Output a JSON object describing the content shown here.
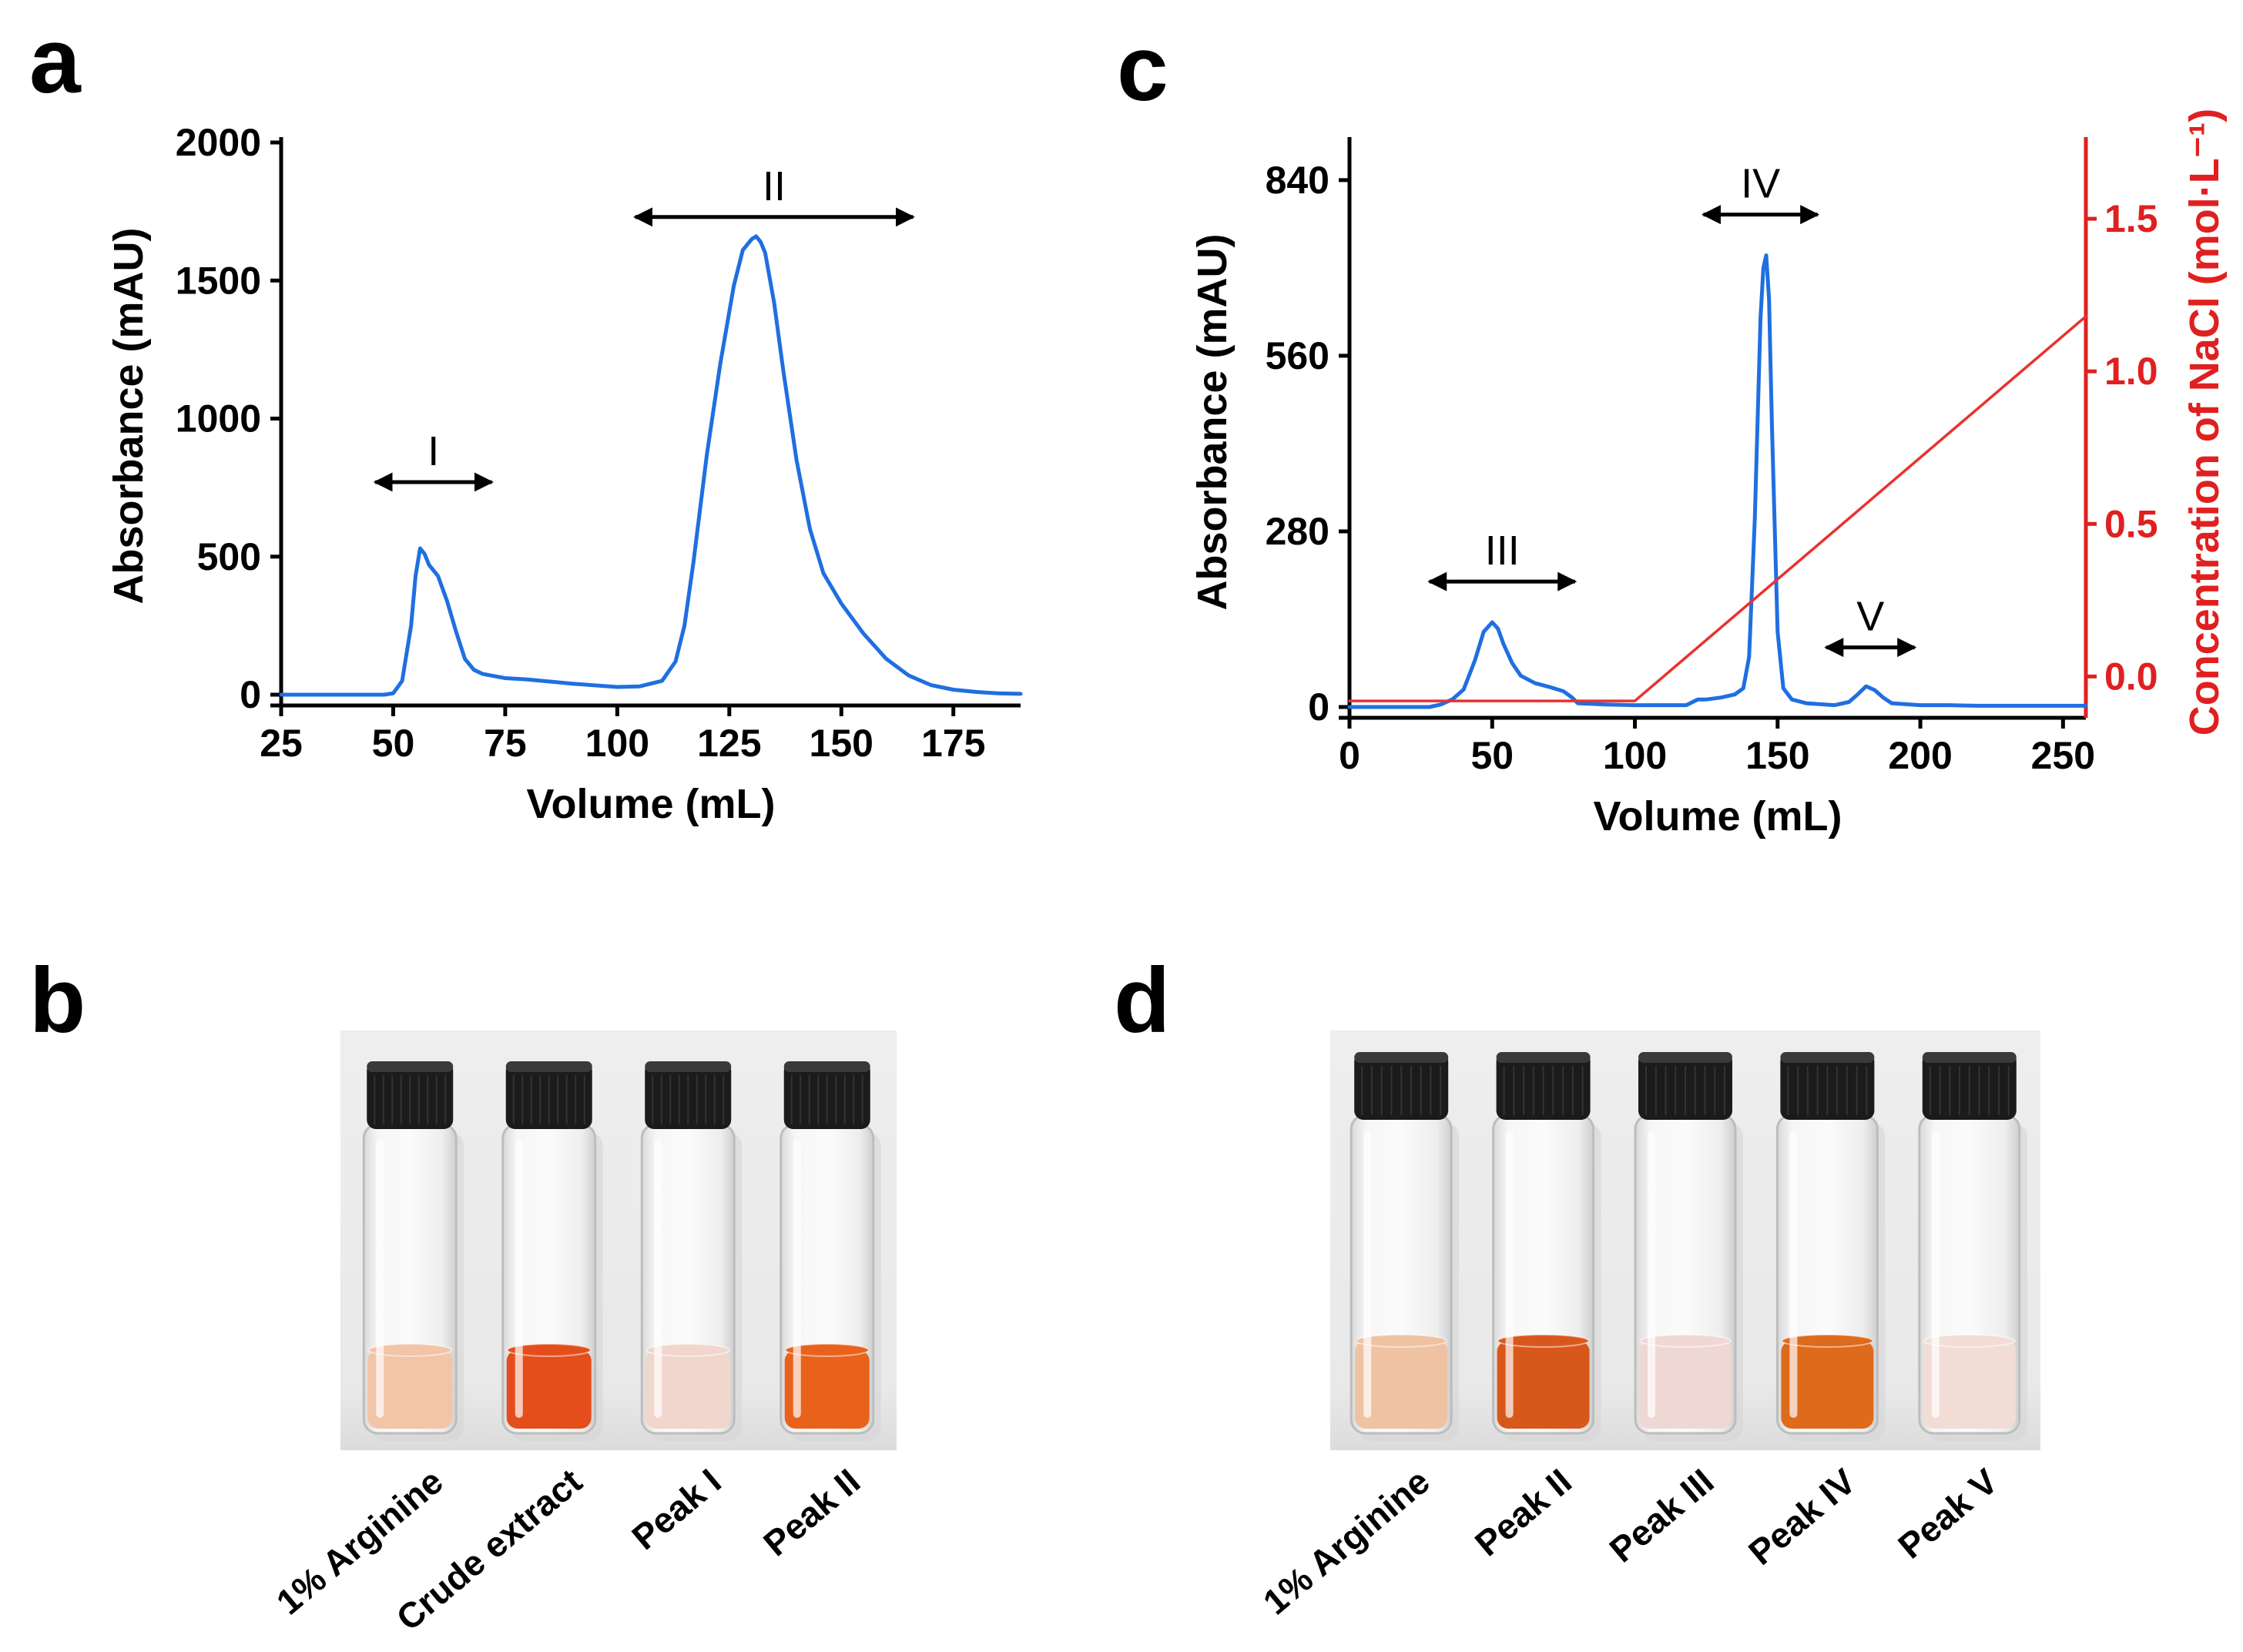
{
  "panels": {
    "a": "a",
    "b": "b",
    "c": "c",
    "d": "d"
  },
  "colors": {
    "trace": "#1f6fe0",
    "gradient": "#e8322f",
    "axis": "#000000",
    "red_axis": "#e02020"
  },
  "chart_data": [
    {
      "id": "a",
      "type": "line",
      "title": "",
      "xlabel": "Volume (mL)",
      "ylabel": "Absorbance (mAU)",
      "xlim": [
        25,
        190
      ],
      "ylim": [
        0,
        2000
      ],
      "xticks": [
        25,
        50,
        75,
        100,
        125,
        150,
        175
      ],
      "yticks": [
        0,
        500,
        1000,
        1500,
        2000
      ],
      "series": [
        {
          "name": "Absorbance",
          "x": [
            25,
            45,
            48,
            50,
            52,
            54,
            55,
            56,
            57,
            58,
            60,
            62,
            64,
            66,
            68,
            70,
            75,
            80,
            90,
            100,
            105,
            110,
            113,
            115,
            117,
            120,
            123,
            126,
            128,
            130,
            131,
            132,
            133,
            135,
            137,
            140,
            143,
            146,
            150,
            155,
            160,
            165,
            170,
            175,
            180,
            185,
            190
          ],
          "y": [
            0,
            0,
            0,
            5,
            50,
            250,
            430,
            530,
            510,
            470,
            430,
            340,
            230,
            130,
            90,
            75,
            60,
            55,
            40,
            28,
            30,
            50,
            120,
            250,
            480,
            870,
            1200,
            1480,
            1610,
            1650,
            1660,
            1640,
            1600,
            1420,
            1180,
            850,
            600,
            440,
            330,
            220,
            130,
            70,
            35,
            18,
            10,
            5,
            3
          ]
        }
      ],
      "annotations": [
        {
          "text": "I",
          "x_from": 46,
          "x_to": 72,
          "y": 770
        },
        {
          "text": "II",
          "x_from": 104,
          "x_to": 166,
          "y": 1730
        }
      ]
    },
    {
      "id": "c",
      "type": "line",
      "title": "",
      "xlabel": "Volume (mL)",
      "ylabel": "Absorbance (mAU)",
      "y2label": "Concentration of NaCl (mol·L⁻¹)",
      "xlim": [
        0,
        258
      ],
      "ylim": [
        0,
        900
      ],
      "y2lim": [
        -0.1,
        1.75
      ],
      "xticks": [
        0,
        50,
        100,
        150,
        200,
        250
      ],
      "yticks": [
        0,
        280,
        560,
        840
      ],
      "y2ticks": [
        0.0,
        0.5,
        1.0,
        1.5
      ],
      "series": [
        {
          "name": "Absorbance",
          "axis": "left",
          "x": [
            0,
            28,
            32,
            36,
            40,
            44,
            47,
            50,
            52,
            54,
            57,
            60,
            65,
            70,
            75,
            78,
            80,
            90,
            100,
            110,
            118,
            122,
            125,
            130,
            135,
            138,
            140,
            142,
            144,
            145,
            146,
            147,
            148,
            150,
            152,
            155,
            160,
            170,
            175,
            178,
            181,
            184,
            187,
            190,
            200,
            210,
            220,
            230,
            240,
            250,
            258
          ],
          "y": [
            0,
            0,
            4,
            12,
            28,
            75,
            120,
            135,
            125,
            100,
            70,
            50,
            38,
            32,
            25,
            15,
            6,
            4,
            3,
            3,
            3,
            12,
            12,
            15,
            20,
            30,
            80,
            300,
            620,
            700,
            720,
            650,
            450,
            120,
            30,
            12,
            6,
            3,
            8,
            20,
            33,
            27,
            15,
            6,
            3,
            3,
            2,
            2,
            2,
            2,
            2
          ]
        },
        {
          "name": "NaCl gradient",
          "axis": "right",
          "x": [
            0,
            100,
            258
          ],
          "y": [
            -0.08,
            -0.08,
            1.18
          ]
        }
      ],
      "annotations": [
        {
          "text": "III",
          "x_from": 28,
          "x_to": 79,
          "y": 200
        },
        {
          "text": "IV",
          "x_from": 124,
          "x_to": 164,
          "y": 785
        },
        {
          "text": "V",
          "x_from": 167,
          "x_to": 198,
          "y": 95
        }
      ]
    }
  ],
  "photo_b": {
    "vials": [
      {
        "label": "1% Arginine",
        "liquid": "#f2c4a8"
      },
      {
        "label": "Crude extract",
        "liquid": "#e44e1c"
      },
      {
        "label": "Peak I",
        "liquid": "#f0d6cc"
      },
      {
        "label": "Peak II",
        "liquid": "#e8621c"
      }
    ]
  },
  "photo_d": {
    "vials": [
      {
        "label": "1% Arginine",
        "liquid": "#eec2a2"
      },
      {
        "label": "Peak  II",
        "liquid": "#d8581c"
      },
      {
        "label": "Peak  III",
        "liquid": "#efd8d4"
      },
      {
        "label": "Peak IV",
        "liquid": "#de6a1c"
      },
      {
        "label": "Peak  V",
        "liquid": "#f1ddd6"
      }
    ]
  }
}
